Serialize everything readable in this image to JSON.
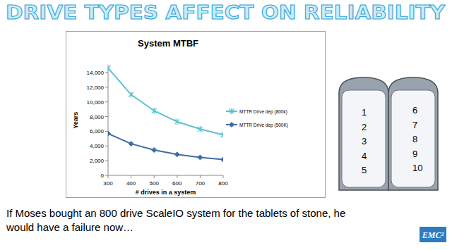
{
  "chart_data": {
    "type": "line",
    "title": "System MTBF",
    "x_label": "# drives in a system",
    "y_label": "Years",
    "x": [
      300,
      400,
      500,
      600,
      700,
      800
    ],
    "series": [
      {
        "name": "MTTR Drive dep (800k)",
        "color": "#5cc3cc",
        "marker": "star",
        "values": [
          14600,
          11000,
          8800,
          7300,
          6300,
          5500
        ]
      },
      {
        "name": "MTTR Drive dep (500K)",
        "color": "#3d6da8",
        "marker": "diamond",
        "values": [
          5700,
          4300,
          3450,
          2850,
          2450,
          2150
        ]
      }
    ],
    "xlim": [
      300,
      800
    ],
    "xticks": [
      300,
      400,
      500,
      600,
      700,
      800
    ],
    "ylim": [
      0,
      15000
    ],
    "yticks": [
      0,
      {
        "value": 2000,
        "label": "2,000"
      },
      {
        "value": 4000,
        "label": "4,000"
      },
      {
        "value": 6000,
        "label": "6,000"
      },
      {
        "value": 8000,
        "label": "8,000"
      },
      {
        "value": 10000,
        "label": "10,000"
      },
      {
        "value": 12000,
        "label": "12,000"
      },
      {
        "value": 14000,
        "label": "14,000"
      }
    ],
    "grid": false,
    "legend": "right"
  },
  "slide": {
    "title": "DRIVE TYPES AFFECT ON RELIABILITY",
    "tablets": [
      [
        1,
        2,
        3,
        4,
        5
      ],
      [
        6,
        7,
        8,
        9,
        10
      ]
    ],
    "caption": [
      "If Moses bought an 800 drive ScaleIO system for the tablets of stone, he",
      "would have a failure now…"
    ],
    "logo": "EMC²"
  }
}
